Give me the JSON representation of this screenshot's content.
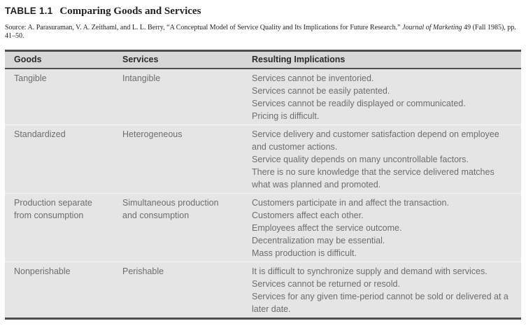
{
  "colors": {
    "page_background": "#ffffff",
    "header_band": "#d7d7d7",
    "body_band": "#e5e5e5",
    "rule_dark": "#4d4d4d",
    "row_divider": "#f8f8f8",
    "caption_text": "#231f20",
    "header_text": "#2a2a2a",
    "body_text": "#6d6d6d"
  },
  "caption": {
    "label": "TABLE 1.1",
    "title": "Comparing Goods and Services"
  },
  "source": {
    "text_before": "Source: A. Parasuraman, V. A. Zeithaml, and L. L. Berry, “A Conceptual Model of Service Quality and Its Implications for Future Research.” ",
    "journal": "Journal of Marketing",
    "text_after": " 49 (Fall 1985), pp. 41–50."
  },
  "table": {
    "columns": [
      "Goods",
      "Services",
      "Resulting Implications"
    ],
    "rows": [
      {
        "goods": "Tangible",
        "services": "Intangible",
        "implications": [
          "Services cannot be inventoried.",
          "Services cannot be easily patented.",
          "Services cannot be readily displayed or communicated.",
          "Pricing is difficult."
        ]
      },
      {
        "goods": "Standardized",
        "services": "Heterogeneous",
        "implications": [
          "Service delivery and customer satisfaction depend on employee and customer actions.",
          "Service quality depends on many uncontrollable factors.",
          "There is no sure knowledge that the service delivered matches what was planned and promoted."
        ]
      },
      {
        "goods": "Production separate from consumption",
        "services": "Simultaneous production and consumption",
        "implications": [
          "Customers participate in and affect the transaction.",
          "Customers affect each other.",
          "Employees affect the service outcome.",
          "Decentralization may be essential.",
          "Mass production is difficult."
        ]
      },
      {
        "goods": "Nonperishable",
        "services": "Perishable",
        "implications": [
          "It is difficult to synchronize supply and demand with services.",
          "Services cannot be returned or resold.",
          "Services for any given time-period cannot be sold or delivered at a later date."
        ]
      }
    ]
  }
}
